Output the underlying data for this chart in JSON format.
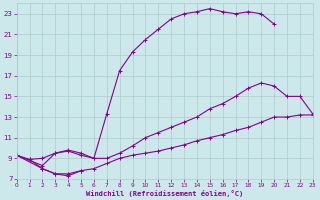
{
  "xlabel": "Windchill (Refroidissement éolien,°C)",
  "bg_color": "#cce8ea",
  "grid_color": "#aacccc",
  "line_color": "#880088",
  "xlim": [
    0,
    23
  ],
  "ylim": [
    7,
    24
  ],
  "xticks": [
    0,
    1,
    2,
    3,
    4,
    5,
    6,
    7,
    8,
    9,
    10,
    11,
    12,
    13,
    14,
    15,
    16,
    17,
    18,
    19,
    20,
    21,
    22,
    23
  ],
  "yticks": [
    7,
    9,
    11,
    13,
    15,
    17,
    19,
    21,
    23
  ],
  "line1_x": [
    0,
    1,
    2,
    3,
    4,
    5,
    6,
    7,
    8,
    9,
    10,
    11,
    12,
    13,
    14,
    15,
    16,
    17,
    18,
    19,
    20
  ],
  "line1_y": [
    9.3,
    8.9,
    9.0,
    9.5,
    9.7,
    9.3,
    9.0,
    13.3,
    17.5,
    19.3,
    20.5,
    21.5,
    22.5,
    23.0,
    23.2,
    23.5,
    23.2,
    23.0,
    23.2,
    23.0,
    22.0
  ],
  "line2_x": [
    0,
    2,
    3,
    4,
    5,
    6,
    7,
    8,
    9,
    10,
    11,
    12,
    13,
    14,
    15,
    16,
    17,
    18,
    19,
    20,
    21,
    22,
    23
  ],
  "line2_y": [
    9.3,
    8.3,
    9.5,
    9.8,
    9.5,
    9.0,
    9.0,
    9.5,
    10.2,
    11.0,
    11.5,
    12.0,
    12.5,
    13.0,
    13.8,
    14.3,
    15.0,
    15.8,
    16.3,
    16.0,
    15.0,
    15.0,
    13.3
  ],
  "line3_x": [
    0,
    2,
    3,
    4,
    5,
    6,
    7,
    8,
    9,
    10,
    11,
    12,
    13,
    14,
    15,
    16,
    17,
    18,
    19,
    20,
    21,
    22,
    23
  ],
  "line3_y": [
    9.3,
    8.0,
    7.5,
    7.5,
    7.8,
    8.0,
    8.5,
    9.0,
    9.3,
    9.5,
    9.7,
    10.0,
    10.3,
    10.7,
    11.0,
    11.3,
    11.7,
    12.0,
    12.5,
    13.0,
    13.0,
    13.2,
    13.2
  ],
  "line_lower_x": [
    1,
    2,
    3,
    4,
    5
  ],
  "line_lower_y": [
    8.9,
    8.0,
    7.5,
    7.3,
    7.8
  ]
}
